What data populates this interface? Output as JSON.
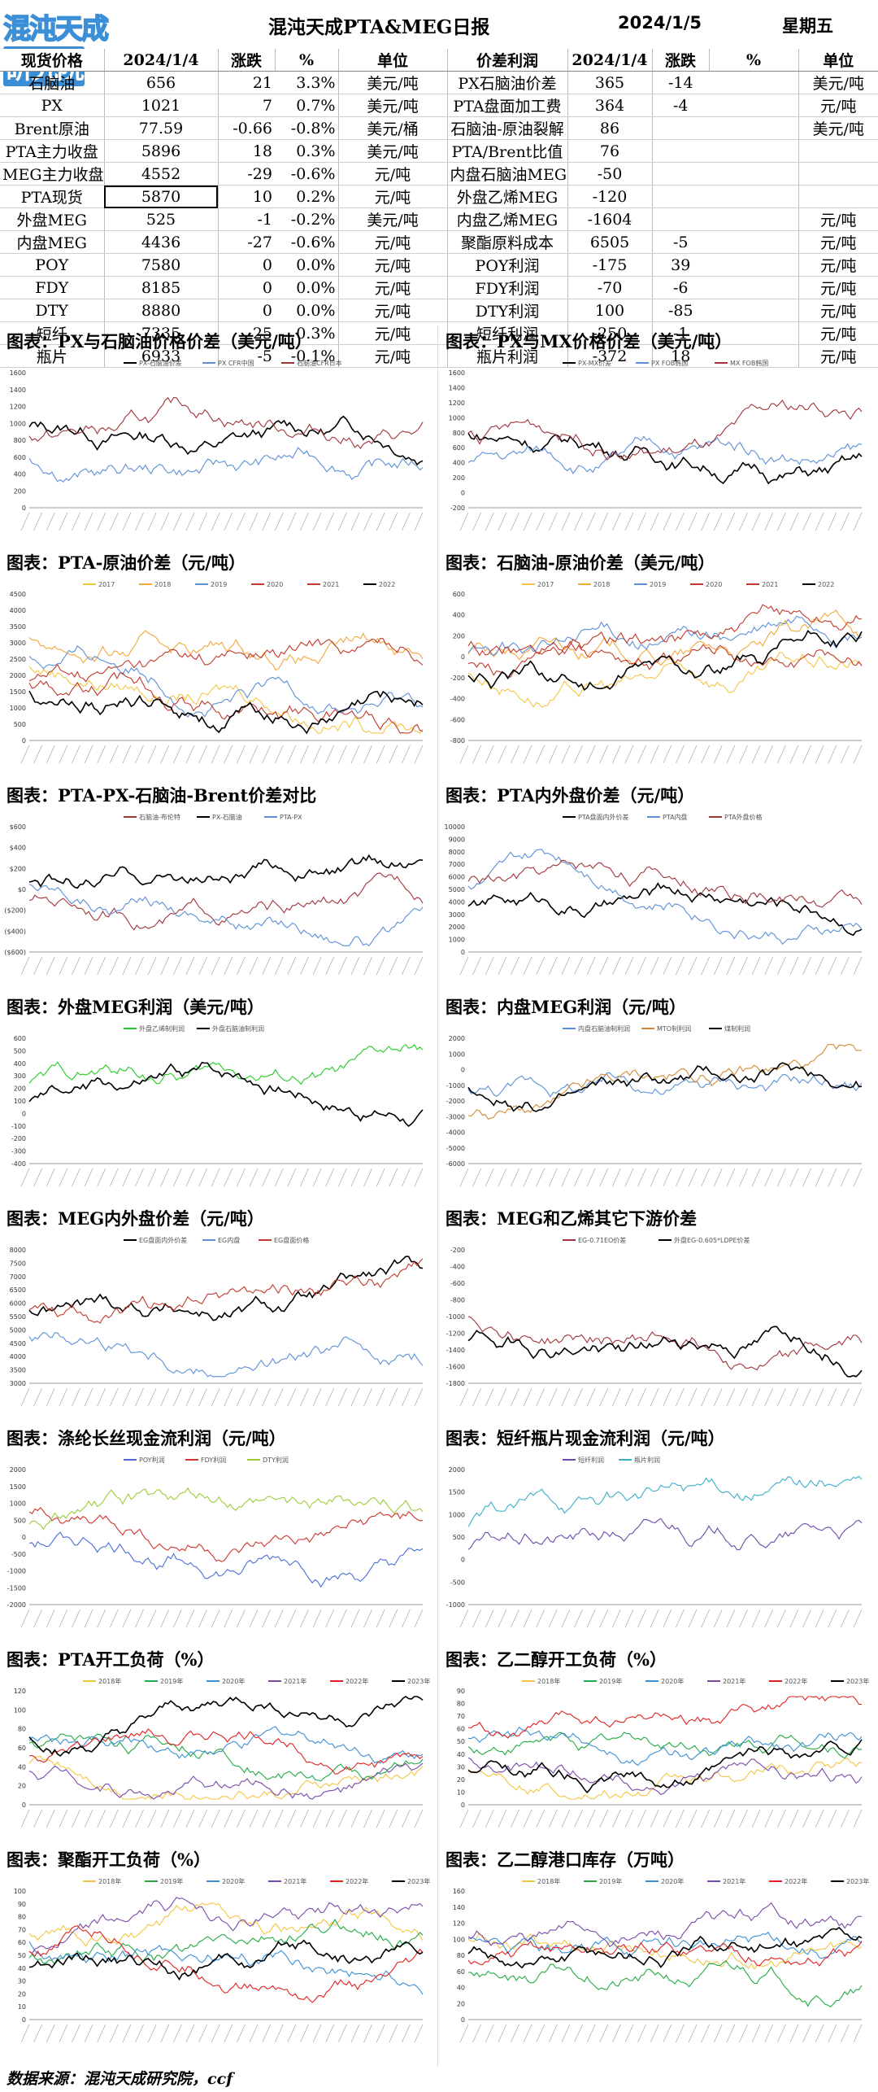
{
  "header": {
    "logo_text": "混沌天成",
    "logo_box": "研究院",
    "title": "混沌天成PTA&MEG日报",
    "date": "2024/1/5",
    "weekday": "星期五"
  },
  "left_table": {
    "columns": [
      "现货价格",
      "2024/1/4",
      "涨跌",
      "%",
      "单位"
    ],
    "rows": [
      [
        "石脑油",
        "656",
        "21",
        "3.3%",
        "美元/吨"
      ],
      [
        "PX",
        "1021",
        "7",
        "0.7%",
        "美元/吨"
      ],
      [
        "Brent原油",
        "77.59",
        "-0.66",
        "-0.8%",
        "美元/桶"
      ],
      [
        "PTA主力收盘",
        "5896",
        "18",
        "0.3%",
        "美元/吨"
      ],
      [
        "MEG主力收盘",
        "4552",
        "-29",
        "-0.6%",
        "元/吨"
      ],
      [
        "PTA现货",
        "5870",
        "10",
        "0.2%",
        "元/吨"
      ],
      [
        "外盘MEG",
        "525",
        "-1",
        "-0.2%",
        "美元/吨"
      ],
      [
        "内盘MEG",
        "4436",
        "-27",
        "-0.6%",
        "元/吨"
      ],
      [
        "POY",
        "7580",
        "0",
        "0.0%",
        "元/吨"
      ],
      [
        "FDY",
        "8185",
        "0",
        "0.0%",
        "元/吨"
      ],
      [
        "DTY",
        "8880",
        "0",
        "0.0%",
        "元/吨"
      ],
      [
        "短纤",
        "7335",
        "25",
        "0.3%",
        "元/吨"
      ],
      [
        "瓶片",
        "6933",
        "-5",
        "-0.1%",
        "元/吨"
      ]
    ]
  },
  "right_table": {
    "columns": [
      "价差利润",
      "2024/1/4",
      "涨跌",
      "%",
      "单位"
    ],
    "rows": [
      [
        "PX石脑油价差",
        "365",
        "-14",
        "",
        "美元/吨"
      ],
      [
        "PTA盘面加工费",
        "364",
        "-4",
        "",
        "元/吨"
      ],
      [
        "石脑油-原油裂解",
        "86",
        "",
        "",
        "美元/吨"
      ],
      [
        "PTA/Brent比值",
        "76",
        "",
        "",
        ""
      ],
      [
        "内盘石脑油MEG",
        "-50",
        "",
        "",
        ""
      ],
      [
        "外盘乙烯MEG",
        "-120",
        "",
        "",
        ""
      ],
      [
        "内盘乙烯MEG",
        "-1604",
        "",
        "",
        "元/吨"
      ],
      [
        "聚酯原料成本",
        "6505",
        "-5",
        "",
        "元/吨"
      ],
      [
        "POY利润",
        "-175",
        "39",
        "",
        "元/吨"
      ],
      [
        "FDY利润",
        "-70",
        "-6",
        "",
        "元/吨"
      ],
      [
        "DTY利润",
        "100",
        "-85",
        "",
        "元/吨"
      ],
      [
        "短纤利润",
        "-250",
        "-1",
        "",
        "元/吨"
      ],
      [
        "瓶片利润",
        "-372",
        "18",
        "",
        "元/吨"
      ]
    ]
  },
  "panels": [
    {
      "title": "图表：PX与石脑油价格价差（美元/吨）",
      "legend": [
        "PX-石脑油价差",
        "PX CFR中国",
        "石脑油CFR日本"
      ],
      "colors": [
        "#000000",
        "#5b8fd6",
        "#a0343a"
      ],
      "yticks": [
        "1600",
        "1400",
        "1200",
        "1000",
        "800",
        "600",
        "400",
        "200",
        "0"
      ],
      "ylim": [
        0,
        1600
      ]
    },
    {
      "title": "图表：PX与MX价格价差（美元/吨）",
      "legend": [
        "PX-MX价差",
        "PX FOB韩国",
        "MX FOB韩国"
      ],
      "colors": [
        "#000000",
        "#5b8fd6",
        "#a0343a"
      ],
      "yticks": [
        "1600",
        "1400",
        "1200",
        "1000",
        "800",
        "600",
        "400",
        "200",
        "0",
        "-200"
      ],
      "ylim": [
        -200,
        1600
      ]
    },
    {
      "title": "图表：PTA-原油价差（元/吨）",
      "legend": [
        "2017",
        "2018",
        "2019",
        "2020",
        "2021",
        "2022"
      ],
      "colors": [
        "#f4c542",
        "#f4a83a",
        "#5b8fd6",
        "#c0392b",
        "#c0392b",
        "#000000"
      ],
      "yticks": [
        "4500",
        "4000",
        "3500",
        "3000",
        "2500",
        "2000",
        "1500",
        "1000",
        "500",
        "0"
      ],
      "ylim": [
        0,
        4500
      ]
    },
    {
      "title": "图表：石脑油-原油价差（美元/吨）",
      "legend": [
        "2017",
        "2018",
        "2019",
        "2020",
        "2021",
        "2022"
      ],
      "colors": [
        "#f4c542",
        "#f4a83a",
        "#5b8fd6",
        "#c0392b",
        "#c0392b",
        "#000000"
      ],
      "yticks": [
        "600",
        "400",
        "200",
        "0",
        "-200",
        "-400",
        "-600",
        "-800"
      ],
      "ylim": [
        -800,
        600
      ]
    },
    {
      "title": "图表：PTA-PX-石脑油-Brent价差对比",
      "legend": [
        "石脑油-布伦特",
        "PX-石脑油",
        "PTA-PX"
      ],
      "colors": [
        "#a0343a",
        "#000000",
        "#5b8fd6"
      ],
      "yticks": [
        "$600",
        "$400",
        "$200",
        "$0",
        "($200)",
        "($400)",
        "($600)"
      ],
      "ylim": [
        -600,
        600
      ]
    },
    {
      "title": "图表：PTA内外盘价差（元/吨）",
      "legend": [
        "PTA盘面内外价差",
        "PTA内盘",
        "PTA外盘价格"
      ],
      "colors": [
        "#000000",
        "#5b8fd6",
        "#a0343a"
      ],
      "yticks": [
        "10000",
        "9000",
        "8000",
        "7000",
        "6000",
        "5000",
        "4000",
        "3000",
        "2000",
        "1000",
        "0"
      ],
      "ylim": [
        0,
        10000
      ]
    },
    {
      "title": "图表：外盘MEG利润（美元/吨）",
      "legend": [
        "外盘乙烯制利润",
        "外盘石脑油制利润"
      ],
      "colors": [
        "#22cc22",
        "#000000"
      ],
      "yticks": [
        "600",
        "500",
        "400",
        "300",
        "200",
        "100",
        "0",
        "-100",
        "-200",
        "-300",
        "-400"
      ],
      "ylim": [
        -400,
        600
      ]
    },
    {
      "title": "图表：内盘MEG利润（元/吨）",
      "legend": [
        "内盘石脑油制利润",
        "MTO制利润",
        "煤制利润"
      ],
      "colors": [
        "#5b8fd6",
        "#d28a30",
        "#000000"
      ],
      "yticks": [
        "2000",
        "1000",
        "0",
        "-1000",
        "-2000",
        "-3000",
        "-4000",
        "-5000",
        "-6000"
      ],
      "ylim": [
        -6000,
        2000
      ]
    },
    {
      "title": "图表：MEG内外盘价差（元/吨）",
      "legend": [
        "EG盘面内外价差",
        "EG内盘",
        "EG盘面价格"
      ],
      "colors": [
        "#000000",
        "#5b8fd6",
        "#c0392b"
      ],
      "yticks": [
        "8000",
        "7500",
        "7000",
        "6500",
        "6000",
        "5500",
        "5000",
        "4500",
        "4000",
        "3500",
        "3000"
      ],
      "ylim": [
        3000,
        8000
      ]
    },
    {
      "title": "图表：MEG和乙烯其它下游价差",
      "legend": [
        "EG-0.71EO价差",
        "外盘EG-0.605*LDPE价差"
      ],
      "colors": [
        "#a0343a",
        "#000000"
      ],
      "yticks": [
        "-200",
        "-400",
        "-600",
        "-800",
        "-1000",
        "-1200",
        "-1400",
        "-1600",
        "-1800"
      ],
      "ylim": [
        -1800,
        -200
      ]
    },
    {
      "title": "图表：涤纶长丝现金流利润（元/吨）",
      "legend": [
        "POY利润",
        "FDY利润",
        "DTY利润"
      ],
      "colors": [
        "#4a6fd6",
        "#d0342c",
        "#9ccc3a"
      ],
      "yticks": [
        "2000",
        "1500",
        "1000",
        "500",
        "0",
        "-500",
        "-1000",
        "-1500",
        "-2000"
      ],
      "ylim": [
        -2000,
        2000
      ]
    },
    {
      "title": "图表：短纤瓶片现金流利润（元/吨）",
      "legend": [
        "短纤利润",
        "瓶片利润"
      ],
      "colors": [
        "#6a4aa8",
        "#3aaecc"
      ],
      "yticks": [
        "2000",
        "1500",
        "1000",
        "500",
        "0",
        "-500",
        "-1000"
      ],
      "ylim": [
        -1000,
        2000
      ]
    },
    {
      "title": "图表：PTA开工负荷（%）",
      "legend": [
        "2018年",
        "2019年",
        "2020年",
        "2021年",
        "2022年",
        "2023年"
      ],
      "colors": [
        "#f4c542",
        "#22aa44",
        "#3a8fd6",
        "#7a4aa8",
        "#e02020",
        "#000000"
      ],
      "yticks": [
        "120",
        "100",
        "80",
        "60",
        "40",
        "20",
        "0"
      ],
      "ylim": [
        0,
        120
      ]
    },
    {
      "title": "图表：乙二醇开工负荷（%）",
      "legend": [
        "2018年",
        "2019年",
        "2020年",
        "2021年",
        "2022年",
        "2023年"
      ],
      "colors": [
        "#f4c542",
        "#22aa44",
        "#3a8fd6",
        "#7a4aa8",
        "#e02020",
        "#000000"
      ],
      "yticks": [
        "90",
        "80",
        "70",
        "60",
        "50",
        "40",
        "30",
        "20",
        "10",
        "0"
      ],
      "ylim": [
        0,
        90
      ]
    },
    {
      "title": "图表：聚酯开工负荷（%）",
      "legend": [
        "2018年",
        "2019年",
        "2020年",
        "2021年",
        "2022年",
        "2023年"
      ],
      "colors": [
        "#f4c542",
        "#22aa44",
        "#3a8fd6",
        "#7a4aa8",
        "#e02020",
        "#000000"
      ],
      "yticks": [
        "100",
        "90",
        "80",
        "70",
        "60",
        "50",
        "40",
        "30",
        "20",
        "10",
        "0"
      ],
      "ylim": [
        0,
        100
      ]
    },
    {
      "title": "图表：乙二醇港口库存（万吨）",
      "legend": [
        "2018年",
        "2019年",
        "2020年",
        "2021年",
        "2022年",
        "2023年"
      ],
      "colors": [
        "#f4c542",
        "#22aa44",
        "#3a8fd6",
        "#7a4aa8",
        "#e02020",
        "#000000"
      ],
      "yticks": [
        "160",
        "140",
        "120",
        "100",
        "80",
        "60",
        "40",
        "20",
        "0"
      ],
      "ylim": [
        0,
        160
      ]
    }
  ],
  "footer": "数据来源：混沌天成研究院，ccf"
}
